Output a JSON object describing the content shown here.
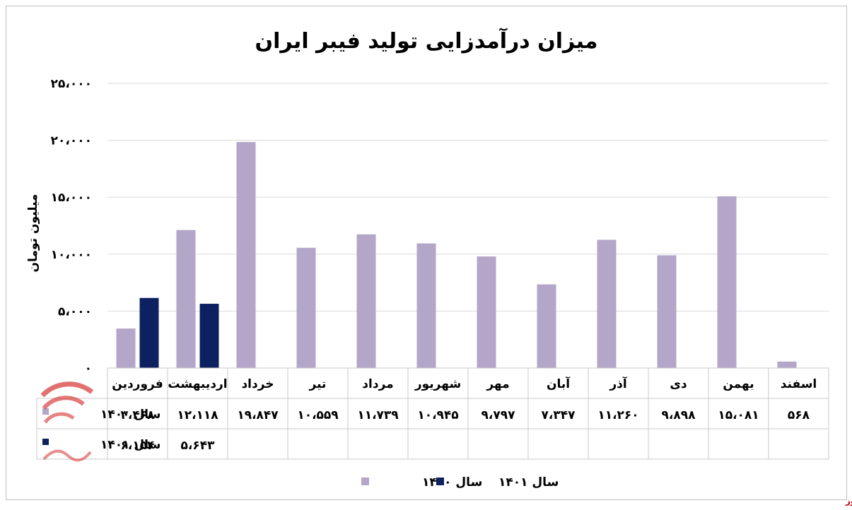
{
  "chart_data": {
    "type": "bar",
    "title": "میزان درآمدزایی تولید فیبر ایران",
    "ylabel": "میلیون تومان",
    "xlabel": "",
    "ylim": [
      0,
      25000
    ],
    "y_ticks": [
      0,
      5000,
      10000,
      15000,
      20000,
      25000
    ],
    "y_tick_labels": [
      "۰",
      "۵،۰۰۰",
      "۱۰،۰۰۰",
      "۱۵،۰۰۰",
      "۲۰،۰۰۰",
      "۲۵،۰۰۰"
    ],
    "grid": true,
    "legend_position": "bottom",
    "categories": [
      "فروردین",
      "اردیبهشت",
      "خرداد",
      "تیر",
      "مرداد",
      "شهریور",
      "مهر",
      "آبان",
      "آذر",
      "دی",
      "بهمن",
      "اسفند"
    ],
    "series": [
      {
        "name": "سال ۱۴۰۰",
        "color": "#b3a6c9",
        "values": [
          3468,
          12118,
          19847,
          10559,
          11739,
          10945,
          9797,
          7347,
          11260,
          9898,
          15081,
          568
        ],
        "labels": [
          "۳،۴۶۸",
          "۱۲،۱۱۸",
          "۱۹،۸۴۷",
          "۱۰،۵۵۹",
          "۱۱،۷۳۹",
          "۱۰،۹۴۵",
          "۹،۷۹۷",
          "۷،۳۴۷",
          "۱۱،۲۶۰",
          "۹،۸۹۸",
          "۱۵،۰۸۱",
          "۵۶۸"
        ]
      },
      {
        "name": "سال ۱۴۰۱",
        "color": "#0d2060",
        "values": [
          6154,
          5643,
          null,
          null,
          null,
          null,
          null,
          null,
          null,
          null,
          null,
          null
        ],
        "labels": [
          "۶،۱۵۴",
          "۵،۶۴۳",
          "",
          "",
          "",
          "",
          "",
          "",
          "",
          "",
          "",
          ""
        ]
      }
    ]
  },
  "watermark": "بورس نیوز"
}
